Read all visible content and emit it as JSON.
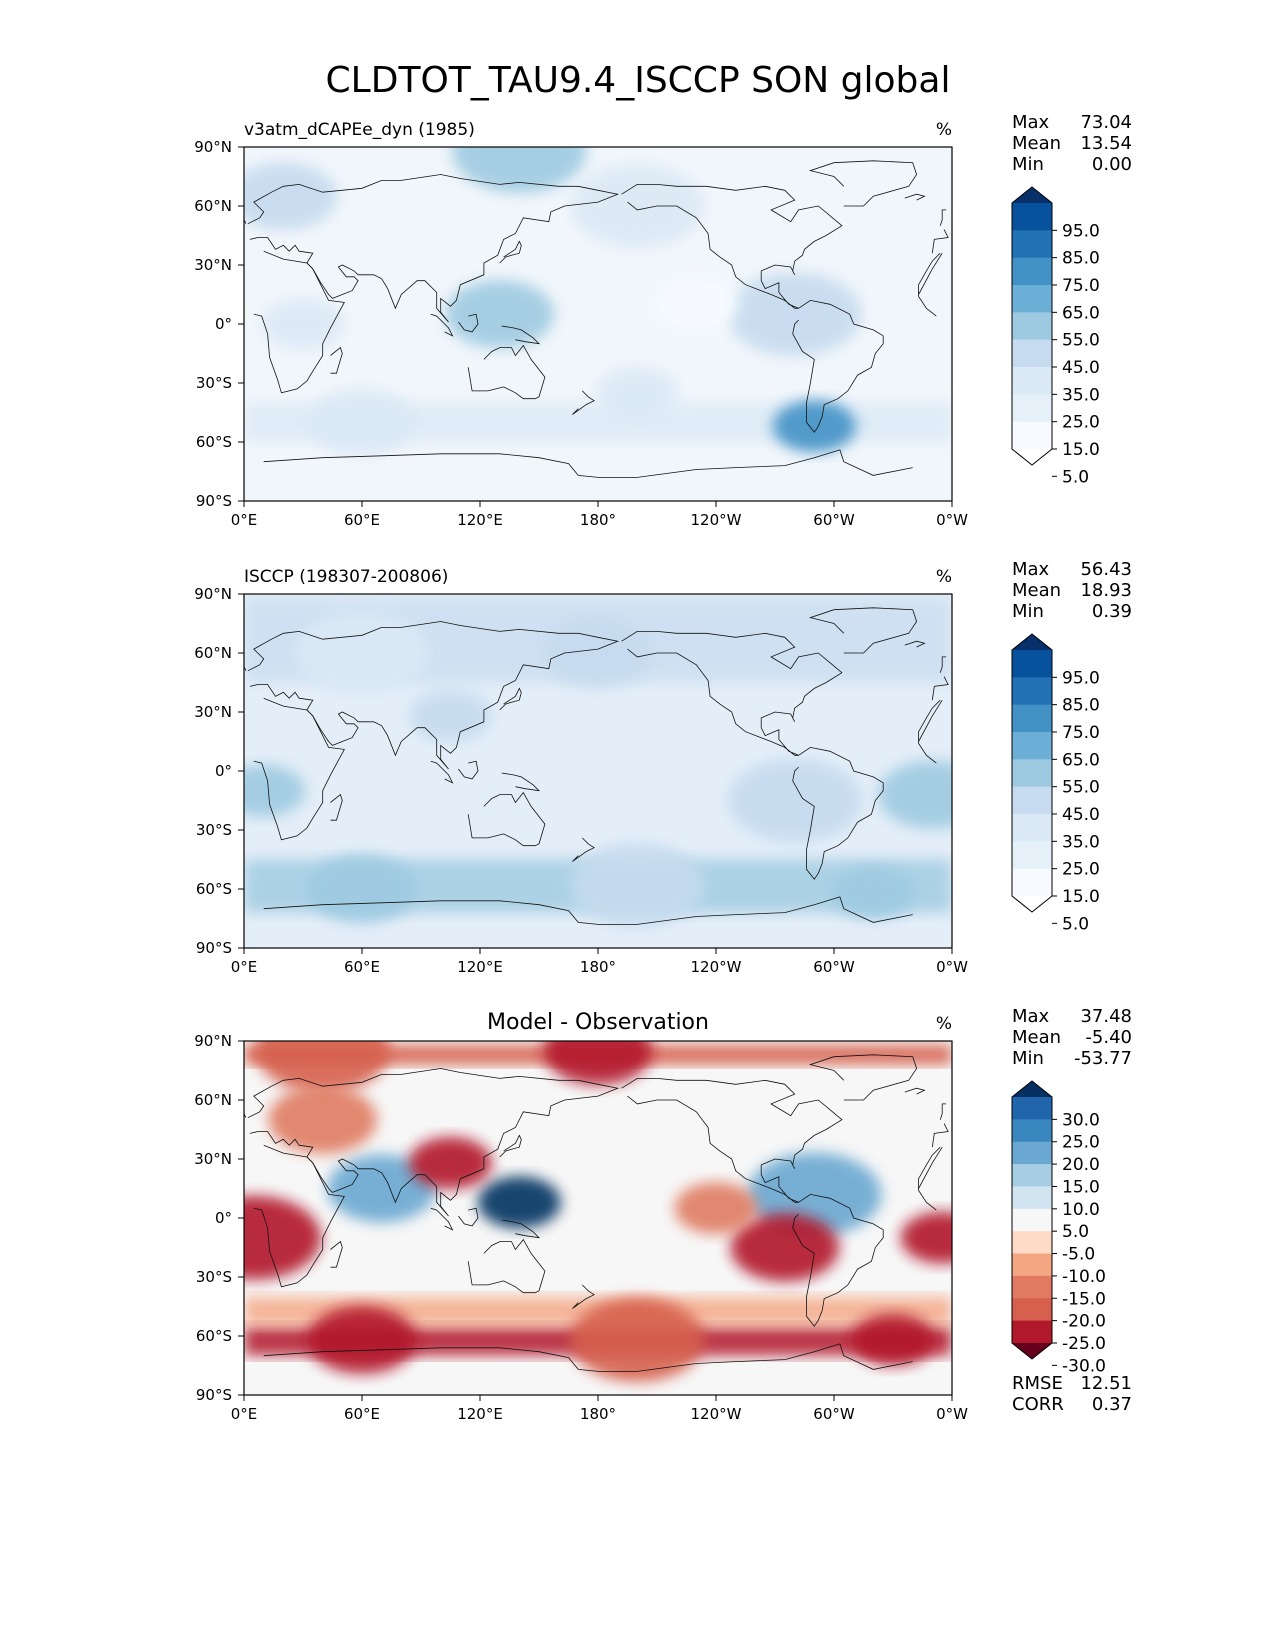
{
  "figure": {
    "title": "CLDTOT_TAU9.4_ISCCP SON global"
  },
  "chart_data": [
    {
      "type": "heatmap",
      "left_title": "v3atm_dCAPEe_dyn (1985)",
      "center_title": "",
      "units": "%",
      "stats": [
        {
          "label": "Max",
          "value": "73.04"
        },
        {
          "label": "Mean",
          "value": "13.54"
        },
        {
          "label": "Min",
          "value": "0.00"
        }
      ],
      "footer_stats": [],
      "x_ticks": [
        "0°E",
        "60°E",
        "120°E",
        "180°",
        "120°W",
        "60°W",
        "0°W"
      ],
      "y_ticks": [
        "90°N",
        "60°N",
        "30°N",
        "0°",
        "30°S",
        "60°S",
        "90°S"
      ],
      "xlim": [
        0,
        360
      ],
      "ylim": [
        -90,
        90
      ],
      "grid": false,
      "colorbar": {
        "labels": [
          "95.0",
          "85.0",
          "75.0",
          "65.0",
          "55.0",
          "45.0",
          "35.0",
          "25.0",
          "15.0",
          "5.0"
        ],
        "colors": [
          "#08306b",
          "#08519c",
          "#2171b5",
          "#4292c6",
          "#6baed6",
          "#9ecae1",
          "#c6dbef",
          "#dbe9f6",
          "#e6f0f9",
          "#f7fbff",
          "#ffffff"
        ],
        "extend": "both"
      },
      "field": [
        {
          "lon": 30,
          "lat": 0,
          "value": 30
        },
        {
          "lon": 130,
          "lat": 5,
          "value": 45
        },
        {
          "lon": 280,
          "lat": 5,
          "value": 40
        },
        {
          "lon": 200,
          "lat": -35,
          "value": 30
        },
        {
          "lon": 20,
          "lat": 65,
          "value": 35
        },
        {
          "lon": 140,
          "lat": 88,
          "value": 45
        },
        {
          "lon": 290,
          "lat": -52,
          "value": 65
        },
        {
          "lon": 60,
          "lat": -50,
          "value": 25
        },
        {
          "lon": 200,
          "lat": 60,
          "value": 25
        },
        {
          "lon": 230,
          "lat": 10,
          "value": 5
        }
      ]
    },
    {
      "type": "heatmap",
      "left_title": "ISCCP (198307-200806)",
      "center_title": "",
      "units": "%",
      "stats": [
        {
          "label": "Max",
          "value": "56.43"
        },
        {
          "label": "Mean",
          "value": "18.93"
        },
        {
          "label": "Min",
          "value": "0.39"
        }
      ],
      "footer_stats": [],
      "x_ticks": [
        "0°E",
        "60°E",
        "120°E",
        "180°",
        "120°W",
        "60°W",
        "0°W"
      ],
      "y_ticks": [
        "90°N",
        "60°N",
        "30°N",
        "0°",
        "30°S",
        "60°S",
        "90°S"
      ],
      "xlim": [
        0,
        360
      ],
      "ylim": [
        -90,
        90
      ],
      "grid": false,
      "colorbar": {
        "labels": [
          "95.0",
          "85.0",
          "75.0",
          "65.0",
          "55.0",
          "45.0",
          "35.0",
          "25.0",
          "15.0",
          "5.0"
        ],
        "colors": [
          "#08306b",
          "#08519c",
          "#2171b5",
          "#4292c6",
          "#6baed6",
          "#9ecae1",
          "#c6dbef",
          "#dbe9f6",
          "#e6f0f9",
          "#f7fbff",
          "#ffffff"
        ],
        "extend": "both"
      },
      "field": [
        {
          "lon": 10,
          "lat": -10,
          "value": 45
        },
        {
          "lon": 350,
          "lat": -12,
          "value": 45
        },
        {
          "lon": 280,
          "lat": -15,
          "value": 40
        },
        {
          "lon": 105,
          "lat": 28,
          "value": 40
        },
        {
          "lon": 60,
          "lat": -60,
          "value": 45
        },
        {
          "lon": 200,
          "lat": -58,
          "value": 40
        },
        {
          "lon": 320,
          "lat": -62,
          "value": 45
        },
        {
          "lon": 180,
          "lat": 60,
          "value": 35
        },
        {
          "lon": 60,
          "lat": 60,
          "value": 30
        }
      ]
    },
    {
      "type": "heatmap",
      "left_title": "",
      "center_title": "Model - Observation",
      "units": "%",
      "stats": [
        {
          "label": "Max",
          "value": "37.48"
        },
        {
          "label": "Mean",
          "value": "-5.40"
        },
        {
          "label": "Min",
          "value": "-53.77"
        }
      ],
      "footer_stats": [
        {
          "label": "RMSE",
          "value": "12.51"
        },
        {
          "label": "CORR",
          "value": "0.37"
        }
      ],
      "x_ticks": [
        "0°E",
        "60°E",
        "120°E",
        "180°",
        "120°W",
        "60°W",
        "0°W"
      ],
      "y_ticks": [
        "90°N",
        "60°N",
        "30°N",
        "0°",
        "30°S",
        "60°S",
        "90°S"
      ],
      "xlim": [
        0,
        360
      ],
      "ylim": [
        -90,
        90
      ],
      "grid": false,
      "colorbar": {
        "labels": [
          "30.0",
          "25.0",
          "20.0",
          "15.0",
          "10.0",
          "5.0",
          "-5.0",
          "-10.0",
          "-15.0",
          "-20.0",
          "-25.0",
          "-30.0"
        ],
        "colors": [
          "#053061",
          "#2166ac",
          "#3a87c0",
          "#6aa8d1",
          "#a7cde3",
          "#d1e5f0",
          "#f7f7f7",
          "#fddbc7",
          "#f4a582",
          "#e07b62",
          "#d6604d",
          "#b2182b",
          "#67001f"
        ],
        "extend": "both"
      },
      "field": [
        {
          "lon": 140,
          "lat": 8,
          "value": 30
        },
        {
          "lon": 70,
          "lat": 15,
          "value": 15
        },
        {
          "lon": 290,
          "lat": 12,
          "value": 15
        },
        {
          "lon": 105,
          "lat": 28,
          "value": -28
        },
        {
          "lon": 275,
          "lat": -15,
          "value": -30
        },
        {
          "lon": 5,
          "lat": -10,
          "value": -30
        },
        {
          "lon": 355,
          "lat": -10,
          "value": -30
        },
        {
          "lon": 60,
          "lat": -62,
          "value": -30
        },
        {
          "lon": 200,
          "lat": -62,
          "value": -25
        },
        {
          "lon": 330,
          "lat": -62,
          "value": -30
        },
        {
          "lon": 180,
          "lat": 85,
          "value": -30
        },
        {
          "lon": 40,
          "lat": 85,
          "value": -25
        },
        {
          "lon": 240,
          "lat": 5,
          "value": -20
        },
        {
          "lon": 40,
          "lat": 50,
          "value": -20
        }
      ]
    }
  ]
}
